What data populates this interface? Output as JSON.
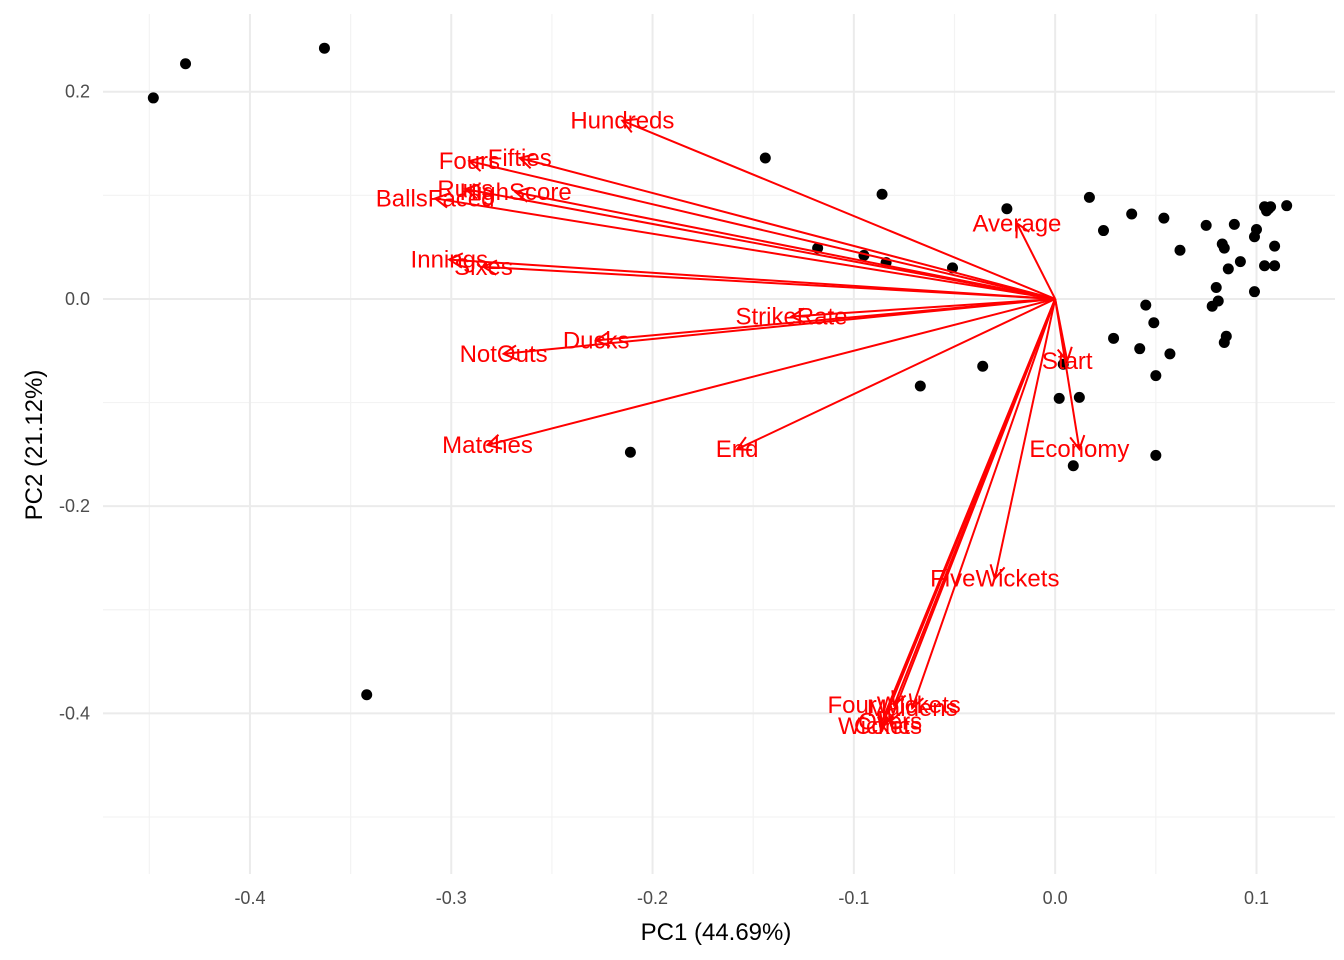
{
  "chart_data": {
    "type": "scatter",
    "subtype": "pca-biplot",
    "xlabel": "PC1 (44.69%)",
    "ylabel": "PC2 (21.12%)",
    "xlim": [
      -0.473,
      0.139
    ],
    "ylim": [
      -0.555,
      0.275
    ],
    "x_ticks": [
      -0.4,
      -0.3,
      -0.2,
      -0.1,
      0.0,
      0.1
    ],
    "x_tick_labels": [
      "-0.4",
      "-0.3",
      "-0.2",
      "-0.1",
      "0.0",
      "0.1"
    ],
    "y_ticks": [
      -0.4,
      -0.2,
      0.0,
      0.2
    ],
    "y_tick_labels": [
      "-0.4",
      "-0.2",
      "0.0",
      "0.2"
    ],
    "x_minor_ticks": [
      -0.45,
      -0.35,
      -0.25,
      -0.15,
      -0.05,
      0.05
    ],
    "y_minor_ticks": [
      -0.5,
      -0.3,
      -0.1,
      0.1
    ],
    "grid": true,
    "point_color": "#000000",
    "loading_color": "#ff0000",
    "points": [
      {
        "x": -0.448,
        "y": 0.194
      },
      {
        "x": -0.432,
        "y": 0.227
      },
      {
        "x": -0.363,
        "y": 0.242
      },
      {
        "x": -0.342,
        "y": -0.382
      },
      {
        "x": -0.211,
        "y": -0.148
      },
      {
        "x": -0.144,
        "y": 0.136
      },
      {
        "x": -0.118,
        "y": 0.049
      },
      {
        "x": -0.095,
        "y": 0.042
      },
      {
        "x": -0.086,
        "y": 0.101
      },
      {
        "x": -0.084,
        "y": 0.035
      },
      {
        "x": -0.067,
        "y": -0.084
      },
      {
        "x": -0.051,
        "y": 0.03
      },
      {
        "x": -0.036,
        "y": -0.065
      },
      {
        "x": -0.024,
        "y": 0.087
      },
      {
        "x": 0.002,
        "y": -0.096
      },
      {
        "x": 0.004,
        "y": -0.063
      },
      {
        "x": 0.009,
        "y": -0.161
      },
      {
        "x": 0.012,
        "y": -0.095
      },
      {
        "x": 0.017,
        "y": 0.098
      },
      {
        "x": 0.024,
        "y": 0.066
      },
      {
        "x": 0.029,
        "y": -0.038
      },
      {
        "x": 0.038,
        "y": 0.082
      },
      {
        "x": 0.042,
        "y": -0.048
      },
      {
        "x": 0.045,
        "y": -0.006
      },
      {
        "x": 0.049,
        "y": -0.023
      },
      {
        "x": 0.05,
        "y": -0.074
      },
      {
        "x": 0.05,
        "y": -0.151
      },
      {
        "x": 0.054,
        "y": 0.078
      },
      {
        "x": 0.057,
        "y": -0.053
      },
      {
        "x": 0.062,
        "y": 0.047
      },
      {
        "x": 0.075,
        "y": 0.071
      },
      {
        "x": 0.078,
        "y": -0.007
      },
      {
        "x": 0.08,
        "y": 0.011
      },
      {
        "x": 0.081,
        "y": -0.002
      },
      {
        "x": 0.083,
        "y": 0.053
      },
      {
        "x": 0.084,
        "y": 0.049
      },
      {
        "x": 0.084,
        "y": -0.042
      },
      {
        "x": 0.085,
        "y": -0.036
      },
      {
        "x": 0.086,
        "y": 0.029
      },
      {
        "x": 0.089,
        "y": 0.072
      },
      {
        "x": 0.092,
        "y": 0.036
      },
      {
        "x": 0.099,
        "y": 0.007
      },
      {
        "x": 0.099,
        "y": 0.06
      },
      {
        "x": 0.1,
        "y": 0.067
      },
      {
        "x": 0.104,
        "y": 0.089
      },
      {
        "x": 0.104,
        "y": 0.032
      },
      {
        "x": 0.105,
        "y": 0.085
      },
      {
        "x": 0.106,
        "y": 0.087
      },
      {
        "x": 0.107,
        "y": 0.089
      },
      {
        "x": 0.109,
        "y": 0.051
      },
      {
        "x": 0.109,
        "y": 0.032
      },
      {
        "x": 0.115,
        "y": 0.09
      }
    ],
    "loadings": [
      {
        "name": "Hundreds",
        "x": -0.215,
        "y": 0.172,
        "label_x": -0.215,
        "label_y": 0.172
      },
      {
        "name": "Fifties",
        "x": -0.266,
        "y": 0.136,
        "label_x": -0.266,
        "label_y": 0.136
      },
      {
        "name": "Fours",
        "x": -0.291,
        "y": 0.133,
        "label_x": -0.291,
        "label_y": 0.133
      },
      {
        "name": "HighScore",
        "x": -0.268,
        "y": 0.103,
        "label_x": -0.268,
        "label_y": 0.103
      },
      {
        "name": "Runs",
        "x": -0.293,
        "y": 0.106,
        "label_x": -0.293,
        "label_y": 0.106
      },
      {
        "name": "BallsFaced",
        "x": -0.308,
        "y": 0.097,
        "label_x": -0.308,
        "label_y": 0.097
      },
      {
        "name": "Innings",
        "x": -0.301,
        "y": 0.038,
        "label_x": -0.301,
        "label_y": 0.038
      },
      {
        "name": "Sixes",
        "x": -0.284,
        "y": 0.031,
        "label_x": -0.284,
        "label_y": 0.031
      },
      {
        "name": "StrikeRate",
        "x": -0.131,
        "y": -0.017,
        "label_x": -0.131,
        "label_y": -0.017
      },
      {
        "name": "Ducks",
        "x": -0.228,
        "y": -0.04,
        "label_x": -0.228,
        "label_y": -0.04
      },
      {
        "name": "NotOuts",
        "x": -0.274,
        "y": -0.053,
        "label_x": -0.274,
        "label_y": -0.053
      },
      {
        "name": "Matches",
        "x": -0.282,
        "y": -0.141,
        "label_x": -0.282,
        "label_y": -0.141
      },
      {
        "name": "End",
        "x": -0.158,
        "y": -0.145,
        "label_x": -0.158,
        "label_y": -0.145
      },
      {
        "name": "Average",
        "x": -0.019,
        "y": 0.073,
        "label_x": -0.019,
        "label_y": 0.073
      },
      {
        "name": "Start",
        "x": 0.006,
        "y": -0.06,
        "label_x": 0.006,
        "label_y": -0.06
      },
      {
        "name": "Economy",
        "x": 0.012,
        "y": -0.145,
        "label_x": 0.012,
        "label_y": -0.145
      },
      {
        "name": "FiveWickets",
        "x": -0.03,
        "y": -0.27,
        "label_x": -0.03,
        "label_y": -0.27
      },
      {
        "name": "FourWickets",
        "x": -0.08,
        "y": -0.392,
        "label_x": -0.08,
        "label_y": -0.392
      },
      {
        "name": "Maidens",
        "x": -0.071,
        "y": -0.395,
        "label_x": -0.071,
        "label_y": -0.395
      },
      {
        "name": "Overs",
        "x": -0.082,
        "y": -0.408,
        "label_x": -0.082,
        "label_y": -0.408
      },
      {
        "name": "Wickets",
        "x": -0.087,
        "y": -0.412,
        "label_x": -0.087,
        "label_y": -0.412
      },
      {
        "name": "Conc",
        "x": -0.086,
        "y": -0.412,
        "label_x": -0.086,
        "label_y": -0.412
      }
    ]
  }
}
